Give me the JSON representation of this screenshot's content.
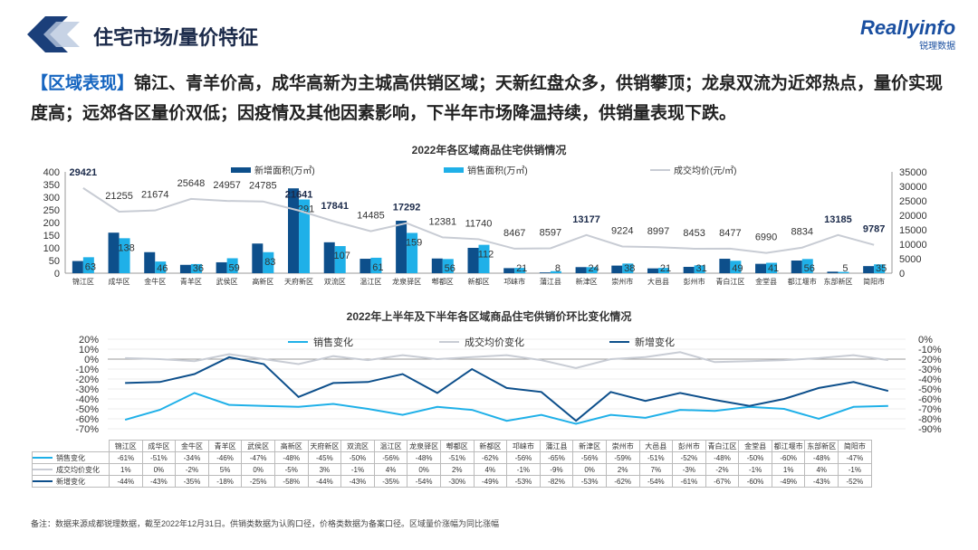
{
  "header": {
    "title": "住宅市场/量价特征",
    "logo_text": "Reallyinfo",
    "logo_sub": "锐理数据"
  },
  "summary": {
    "tag": "【区域表现】",
    "text": "锦江、青羊价高，成华高新为主城高供销区域；天新红盘众多，供销攀顶；龙泉双流为近郊热点，量价实现度高；远郊各区量价双低；因疫情及其他因素影响，下半年市场降温持续，供销量表现下跌。"
  },
  "footnote": "备注：数据来源成都锐理数据，截至2022年12月31日。供销类数据为认购口径，价格类数据为备案口径。区域量价涨幅为同比涨幅",
  "colors": {
    "new": "#0d4f8b",
    "sales": "#1fb0e8",
    "price": "#c8ccd4"
  },
  "chart_data": [
    {
      "type": "bar",
      "title": "2022年各区域商品住宅供销情况",
      "categories": [
        "锦江区",
        "成华区",
        "金牛区",
        "青羊区",
        "武侯区",
        "高新区",
        "天府新区",
        "双流区",
        "温江区",
        "龙泉驿区",
        "郫都区",
        "新都区",
        "邛崃市",
        "蒲江县",
        "新津区",
        "崇州市",
        "大邑县",
        "彭州市",
        "青白江区",
        "金堂县",
        "都江堰市",
        "东部新区",
        "简阳市"
      ],
      "series": [
        {
          "name": "新增面积(万㎡)",
          "axis": "left",
          "values": [
            48,
            160,
            83,
            33,
            43,
            117,
            335,
            122,
            57,
            207,
            58,
            100,
            20,
            3,
            24,
            30,
            19,
            25,
            57,
            37,
            50,
            6,
            28
          ]
        },
        {
          "name": "销售面积(万㎡)",
          "axis": "left",
          "values": [
            63,
            138,
            46,
            36,
            59,
            83,
            291,
            107,
            61,
            159,
            56,
            112,
            21,
            8,
            24,
            38,
            21,
            31,
            49,
            41,
            56,
            5,
            35
          ]
        },
        {
          "name": "成交均价(元/㎡)",
          "axis": "right",
          "type": "line",
          "values": [
            29421,
            21255,
            21674,
            25648,
            24957,
            24785,
            21641,
            17841,
            14485,
            17292,
            12381,
            11740,
            8467,
            8597,
            13177,
            9224,
            8997,
            8453,
            8477,
            6990,
            8834,
            13185,
            9787
          ]
        }
      ],
      "ylim": [
        0,
        400
      ],
      "yticks": [
        "0",
        "50",
        "100",
        "150",
        "200",
        "250",
        "300",
        "350",
        "400"
      ],
      "y2lim": [
        0,
        35000
      ],
      "y2ticks": [
        "0",
        "5000",
        "10000",
        "15000",
        "20000",
        "25000",
        "30000",
        "35000"
      ]
    },
    {
      "type": "line",
      "title": "2022年上半年及下半年各区域商品住宅供销价环比变化情况",
      "categories": [
        "锦江区",
        "成华区",
        "金牛区",
        "青羊区",
        "武侯区",
        "高新区",
        "天府新区",
        "双流区",
        "温江区",
        "龙泉驿区",
        "郫都区",
        "新都区",
        "邛崃市",
        "蒲江县",
        "新津区",
        "崇州市",
        "大邑县",
        "彭州市",
        "青白江区",
        "金堂县",
        "都江堰市",
        "东部新区",
        "简阳市"
      ],
      "series": [
        {
          "name": "销售变化",
          "axis": "left",
          "values": [
            -61,
            -51,
            -34,
            -46,
            -47,
            -48,
            -45,
            -50,
            -56,
            -48,
            -51,
            -62,
            -56,
            -65,
            -56,
            -59,
            -51,
            -52,
            -48,
            -50,
            -60,
            -48,
            -47
          ]
        },
        {
          "name": "成交均价变化",
          "axis": "left",
          "values": [
            1,
            0,
            -2,
            5,
            0,
            -5,
            3,
            -1,
            4,
            0,
            2,
            4,
            -1,
            -9,
            0,
            2,
            7,
            -3,
            -2,
            -1,
            1,
            4,
            -1
          ]
        },
        {
          "name": "新增变化",
          "axis": "right",
          "values": [
            -44,
            -43,
            -35,
            -18,
            -25,
            -58,
            -44,
            -43,
            -35,
            -54,
            -30,
            -49,
            -53,
            -82,
            -53,
            -62,
            -54,
            -61,
            -67,
            -60,
            -49,
            -43,
            -52
          ]
        }
      ],
      "ylim": [
        -70,
        20
      ],
      "yticks": [
        "20%",
        "10%",
        "0%",
        "-10%",
        "-20%",
        "-30%",
        "-40%",
        "-50%",
        "-60%",
        "-70%"
      ],
      "y2lim": [
        -90,
        0
      ],
      "y2ticks": [
        "0%",
        "-10%",
        "-20%",
        "-30%",
        "-40%",
        "-50%",
        "-60%",
        "-70%",
        "-80%",
        "-90%"
      ]
    }
  ]
}
